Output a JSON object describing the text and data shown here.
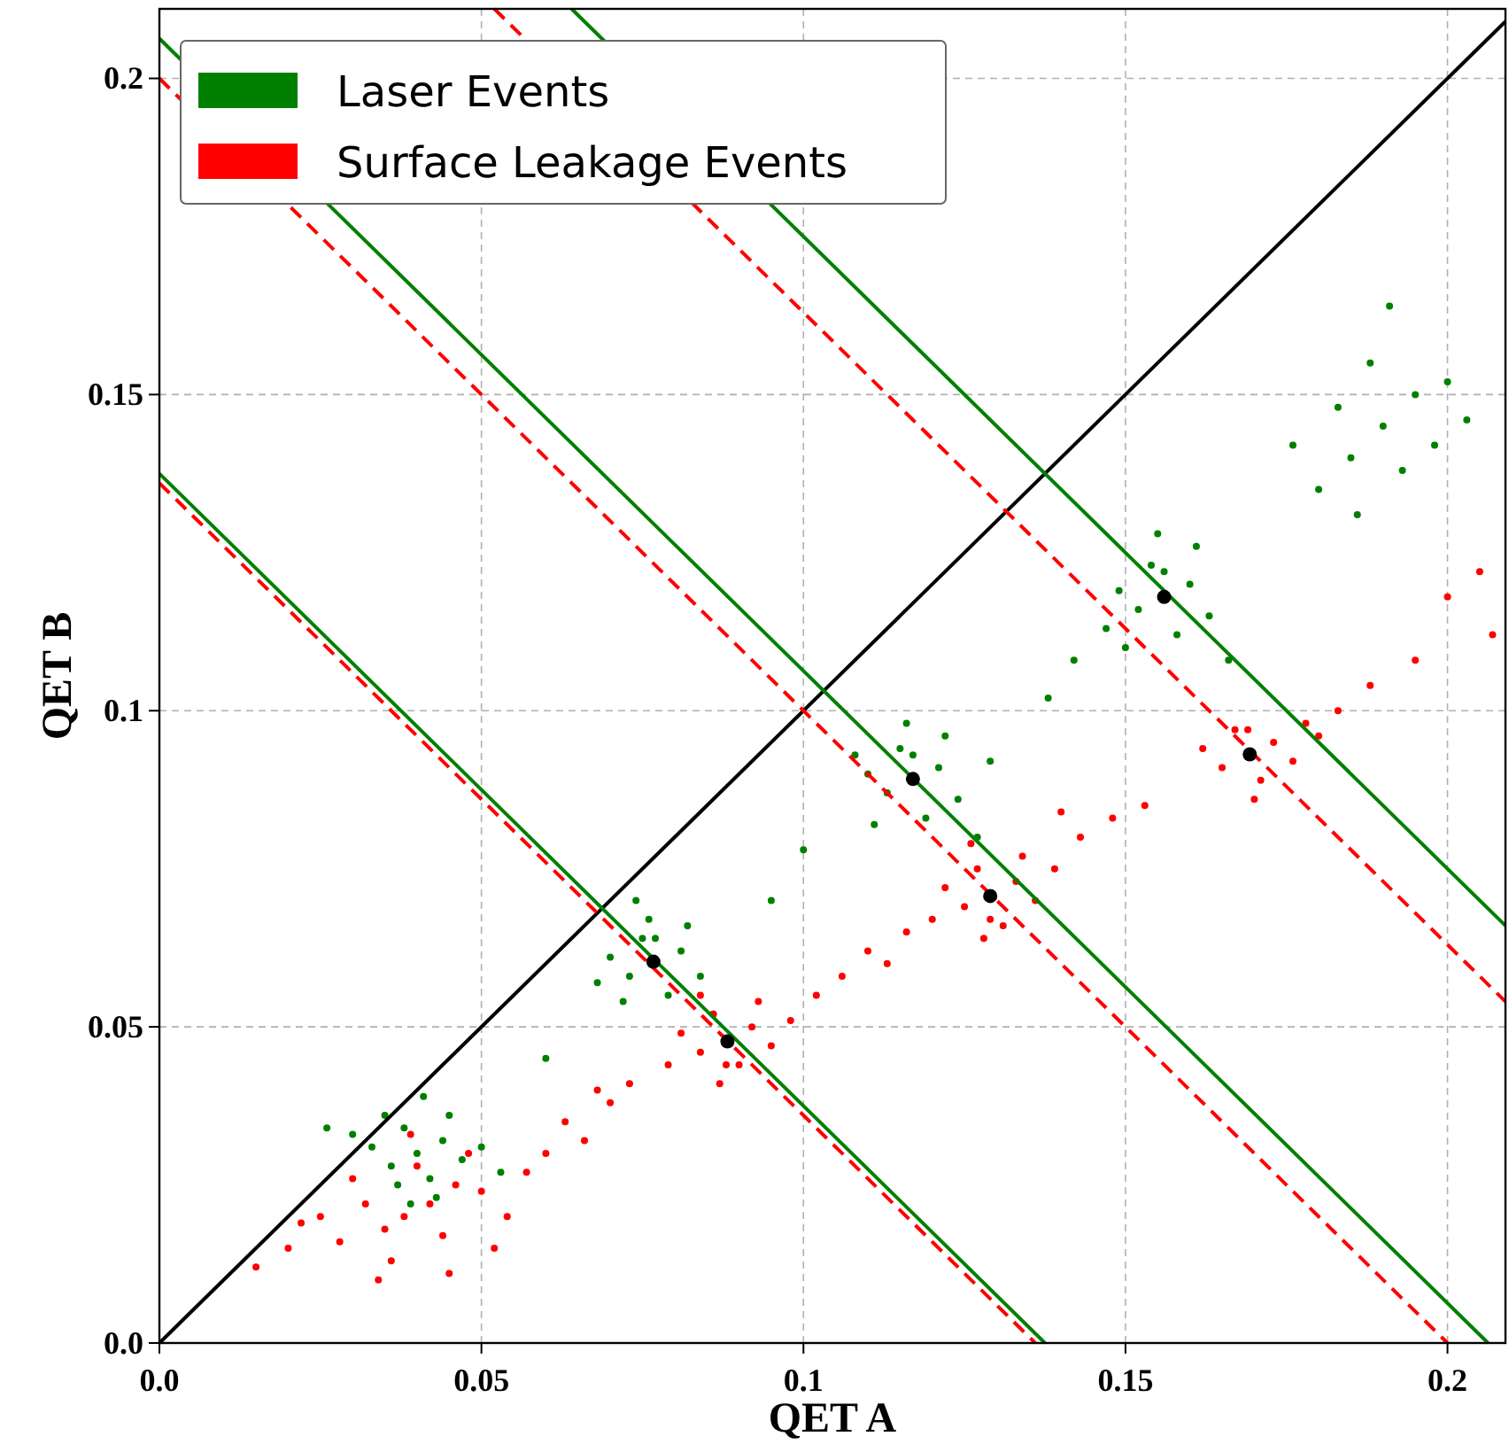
{
  "chart_data": {
    "type": "scatter",
    "xlabel": "QET A",
    "ylabel": "QET B",
    "xlim": [
      0,
      0.209
    ],
    "ylim": [
      0,
      0.211
    ],
    "xticks": [
      {
        "value": 0,
        "label": "0.0"
      },
      0.05,
      0.1,
      0.15,
      0.2
    ],
    "yticks": [
      {
        "value": 0,
        "label": "0.0"
      },
      0.05,
      0.1,
      0.15,
      0.2
    ],
    "grid": true,
    "legend": "top left",
    "series": [
      {
        "name": "Laser Events",
        "color": "#008000",
        "marker": "circle",
        "x": [
          0.04,
          0.036,
          0.044,
          0.038,
          0.042,
          0.033,
          0.047,
          0.039,
          0.035,
          0.045,
          0.03,
          0.05,
          0.041,
          0.043,
          0.037,
          0.026,
          0.053,
          0.077,
          0.073,
          0.081,
          0.075,
          0.079,
          0.07,
          0.084,
          0.076,
          0.082,
          0.072,
          0.086,
          0.068,
          0.074,
          0.06,
          0.095,
          0.1,
          0.117,
          0.113,
          0.121,
          0.115,
          0.119,
          0.11,
          0.124,
          0.116,
          0.122,
          0.111,
          0.127,
          0.108,
          0.129,
          0.138,
          0.142,
          0.156,
          0.152,
          0.16,
          0.154,
          0.158,
          0.149,
          0.163,
          0.155,
          0.161,
          0.15,
          0.166,
          0.147,
          0.19,
          0.185,
          0.195,
          0.183,
          0.198,
          0.188,
          0.193,
          0.18,
          0.2,
          0.186,
          0.176,
          0.191,
          0.203
        ],
        "values": [
          0.03,
          0.028,
          0.032,
          0.034,
          0.026,
          0.031,
          0.029,
          0.022,
          0.036,
          0.036,
          0.033,
          0.031,
          0.039,
          0.023,
          0.025,
          0.034,
          0.027,
          0.064,
          0.058,
          0.062,
          0.064,
          0.055,
          0.061,
          0.058,
          0.067,
          0.066,
          0.054,
          0.052,
          0.057,
          0.07,
          0.045,
          0.07,
          0.078,
          0.093,
          0.087,
          0.091,
          0.094,
          0.083,
          0.09,
          0.086,
          0.098,
          0.096,
          0.082,
          0.08,
          0.093,
          0.092,
          0.102,
          0.108,
          0.122,
          0.116,
          0.12,
          0.123,
          0.112,
          0.119,
          0.115,
          0.128,
          0.126,
          0.11,
          0.108,
          0.113,
          0.145,
          0.14,
          0.15,
          0.148,
          0.142,
          0.155,
          0.138,
          0.135,
          0.152,
          0.131,
          0.142,
          0.164,
          0.146
        ]
      },
      {
        "name": "Surface Leakage Events",
        "color": "#ff0000",
        "marker": "circle",
        "x": [
          0.042,
          0.038,
          0.046,
          0.035,
          0.05,
          0.04,
          0.044,
          0.032,
          0.054,
          0.048,
          0.028,
          0.036,
          0.025,
          0.057,
          0.052,
          0.03,
          0.02,
          0.015,
          0.06,
          0.045,
          0.034,
          0.039,
          0.022,
          0.063,
          0.066,
          0.07,
          0.068,
          0.073,
          0.088,
          0.084,
          0.092,
          0.086,
          0.09,
          0.081,
          0.095,
          0.087,
          0.093,
          0.079,
          0.098,
          0.084,
          0.102,
          0.106,
          0.11,
          0.113,
          0.116,
          0.129,
          0.125,
          0.133,
          0.127,
          0.131,
          0.122,
          0.136,
          0.128,
          0.134,
          0.12,
          0.139,
          0.126,
          0.143,
          0.148,
          0.153,
          0.14,
          0.169,
          0.165,
          0.173,
          0.167,
          0.171,
          0.162,
          0.176,
          0.17,
          0.178,
          0.183,
          0.188,
          0.195,
          0.2,
          0.205,
          0.207,
          0.18
        ],
        "values": [
          0.022,
          0.02,
          0.025,
          0.018,
          0.024,
          0.028,
          0.017,
          0.022,
          0.02,
          0.03,
          0.016,
          0.013,
          0.02,
          0.027,
          0.015,
          0.026,
          0.015,
          0.012,
          0.03,
          0.011,
          0.01,
          0.033,
          0.019,
          0.035,
          0.032,
          0.038,
          0.04,
          0.041,
          0.044,
          0.046,
          0.05,
          0.052,
          0.044,
          0.049,
          0.047,
          0.041,
          0.054,
          0.044,
          0.051,
          0.055,
          0.055,
          0.058,
          0.062,
          0.06,
          0.065,
          0.067,
          0.069,
          0.073,
          0.075,
          0.066,
          0.072,
          0.07,
          0.064,
          0.077,
          0.067,
          0.075,
          0.079,
          0.08,
          0.083,
          0.085,
          0.084,
          0.097,
          0.091,
          0.095,
          0.097,
          0.089,
          0.094,
          0.092,
          0.086,
          0.098,
          0.1,
          0.104,
          0.108,
          0.118,
          0.122,
          0.112,
          0.096
        ]
      },
      {
        "color": "#000000",
        "type": "line",
        "line_style": "solid",
        "x": [
          0,
          0.209
        ],
        "values": [
          0,
          0.209
        ]
      },
      {
        "color": "#008000",
        "type": "line",
        "line_style": "solid",
        "x": [
          0,
          0.1375
        ],
        "values": [
          0.1375,
          0
        ]
      },
      {
        "color": "#ff0000",
        "type": "line",
        "line_style": "dashed",
        "x": [
          0,
          0.136
        ],
        "values": [
          0.136,
          0
        ]
      },
      {
        "color": "#008000",
        "type": "line",
        "line_style": "solid",
        "x": [
          0,
          0.2063
        ],
        "values": [
          0.2063,
          0
        ]
      },
      {
        "color": "#ff0000",
        "type": "line",
        "line_style": "dashed",
        "x": [
          0,
          0.2
        ],
        "values": [
          0.2,
          0
        ]
      },
      {
        "color": "#008000",
        "type": "line",
        "line_style": "solid",
        "x": [
          0.064,
          0.209
        ],
        "values": [
          0.211,
          0.066
        ]
      },
      {
        "color": "#ff0000",
        "type": "line",
        "line_style": "dashed",
        "x": [
          0.052,
          0.209
        ],
        "values": [
          0.211,
          0.054
        ]
      },
      {
        "color": "#000000",
        "marker": "circle",
        "x": [
          0.0767,
          0.0882,
          0.117,
          0.129,
          0.156,
          0.1693
        ],
        "values": [
          0.0603,
          0.0477,
          0.0892,
          0.0707,
          0.118,
          0.0931
        ]
      }
    ]
  }
}
